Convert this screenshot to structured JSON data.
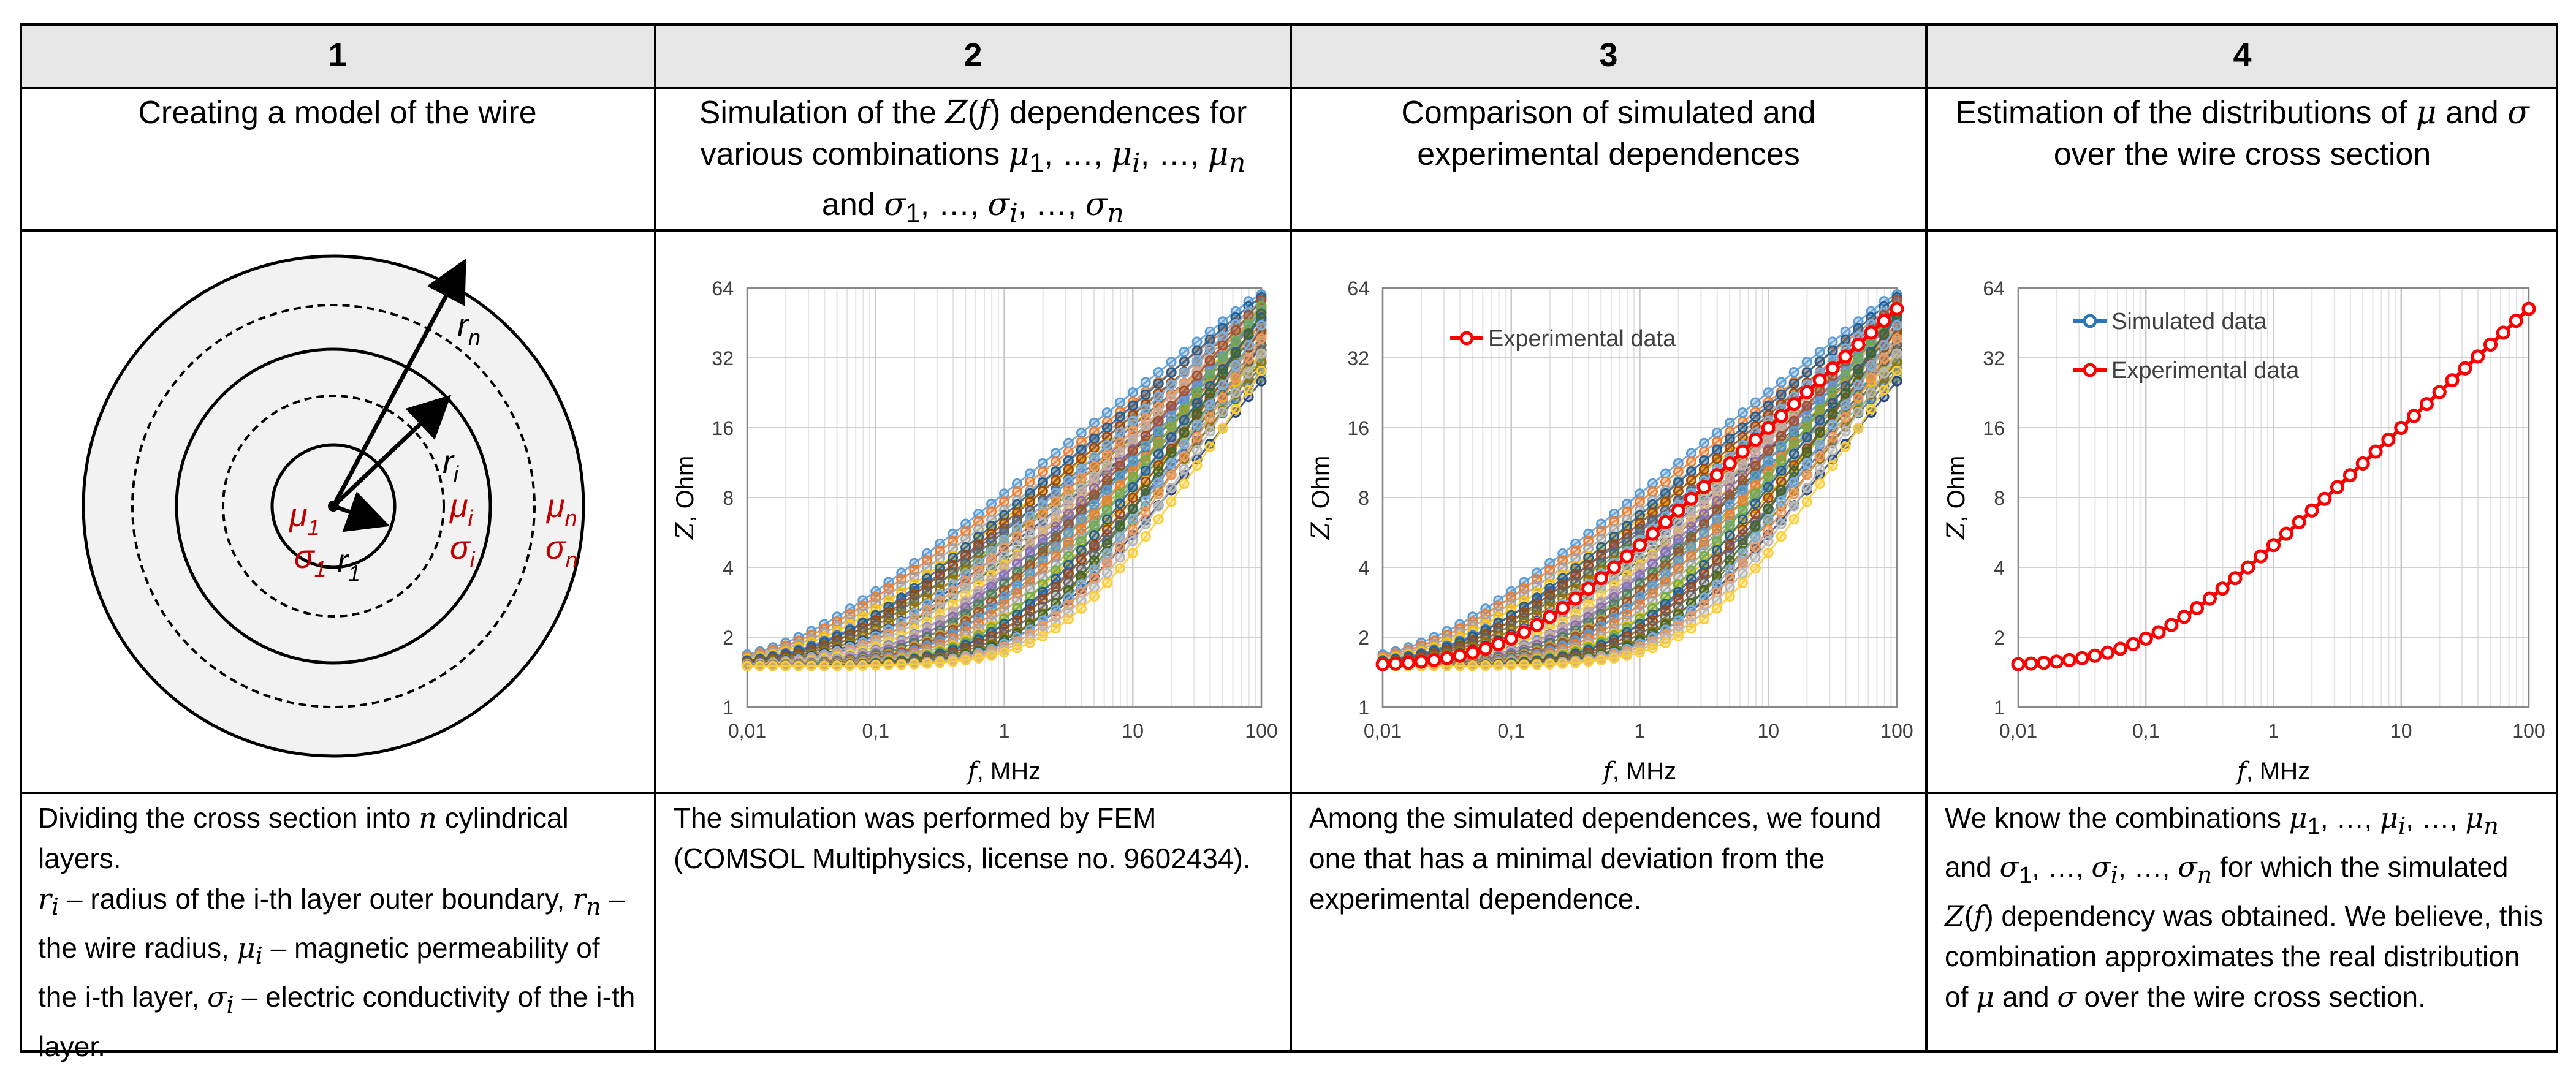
{
  "columns": [
    {
      "number": "1",
      "title_html": "Creating a model of the wire",
      "desc_html": "Dividing the cross section into <i class='serif-i'>n</i> cylindrical layers.<br><i class='serif-i'>r<sub>i</sub></i> – radius of the i-th layer outer boundary, <i class='serif-i'>r<sub>n</sub></i> – the wire radius, <i class='serif-i'>μ<sub>i</sub></i> – magnetic permeability of the i-th layer, <i class='serif-i'>σ<sub>i</sub></i> – electric conductivity of the i-th layer."
    },
    {
      "number": "2",
      "title_html": "Simulation of the <i class='serif-i'>Z</i>(<i class='serif-i'>f</i>) dependences for various combinations <i class='serif-i'>μ</i><sub>1</sub>, …, <i class='serif-i'>μ<sub>i</sub></i>, …, <i class='serif-i'>μ<sub>n</sub></i> and <i class='serif-i'>σ</i><sub>1</sub>, …, <i class='serif-i'>σ<sub>i</sub></i>, …, <i class='serif-i'>σ<sub>n</sub></i>",
      "desc_html": "The simulation was performed by FEM (COMSOL Multiphysics, license no. 9602434)."
    },
    {
      "number": "3",
      "title_html": "Comparison of simulated and experimental dependences",
      "desc_html": "Among the simulated dependences, we found one that has a minimal deviation from the experimental dependence."
    },
    {
      "number": "4",
      "title_html": "Estimation of the distributions of <i class='serif-i'>μ</i> and <i class='serif-i'>σ</i> over the wire cross section",
      "desc_html": "We know the combinations <i class='serif-i'>μ</i><sub>1</sub>, …, <i class='serif-i'>μ<sub>i</sub></i>, …, <i class='serif-i'>μ<sub>n</sub></i> and <i class='serif-i'>σ</i><sub>1</sub>, …, <i class='serif-i'>σ<sub>i</sub></i>, …, <i class='serif-i'>σ<sub>n</sub></i> for which the simulated <i class='serif-i'>Z</i>(<i class='serif-i'>f</i>) dependency was obtained. We believe, this combination approximates the real distribution of <i class='serif-i'>μ</i> and <i class='serif-i'>σ</i> over the wire cross section."
    }
  ],
  "wire_model": {
    "labels": [
      {
        "name": "mu-1",
        "main": "μ",
        "sub": "1",
        "color": "#c00000"
      },
      {
        "name": "sigma-1",
        "main": "σ",
        "sub": "1",
        "color": "#c00000"
      },
      {
        "name": "r-1",
        "main": "r",
        "sub": "1",
        "color": "#000000"
      },
      {
        "name": "r-i",
        "main": "r",
        "sub": "i",
        "color": "#000000"
      },
      {
        "name": "mu-i",
        "main": "μ",
        "sub": "i",
        "color": "#c00000"
      },
      {
        "name": "sigma-i",
        "main": "σ",
        "sub": "i",
        "color": "#c00000"
      },
      {
        "name": "r-n",
        "main": "r",
        "sub": "n",
        "color": "#000000"
      },
      {
        "name": "mu-n",
        "main": "μ",
        "sub": "n",
        "color": "#c00000"
      },
      {
        "name": "sigma-n",
        "main": "σ",
        "sub": "n",
        "color": "#c00000"
      }
    ]
  },
  "chart_data": [
    {
      "type": "line",
      "panel": "simulated-dependences",
      "xscale": "log",
      "yscale": "log2",
      "xlim": [
        0.01,
        100
      ],
      "ylim": [
        1,
        64
      ],
      "xticks": [
        "0,01",
        "0,1",
        "1",
        "10",
        "100"
      ],
      "yticks": [
        "1",
        "2",
        "4",
        "8",
        "16",
        "32",
        "64"
      ],
      "xlabel": "f, MHz",
      "ylabel": "Z, Ohm",
      "grid": true,
      "legend": [],
      "family": {
        "count": 40,
        "z_low": 1.5,
        "z_high_min": 26,
        "z_high_max": 60,
        "knee_min_mhz": 0.02,
        "knee_max_mhz": 3
      }
    },
    {
      "type": "line",
      "panel": "comparison",
      "xscale": "log",
      "yscale": "log2",
      "xlim": [
        0.01,
        100
      ],
      "ylim": [
        1,
        64
      ],
      "xticks": [
        "0,01",
        "0,1",
        "1",
        "10",
        "100"
      ],
      "yticks": [
        "1",
        "2",
        "4",
        "8",
        "16",
        "32",
        "64"
      ],
      "xlabel": "f, MHz",
      "ylabel": "Z, Ohm",
      "grid": true,
      "legend": [
        "Experimental data"
      ],
      "legend_position": "top-left",
      "family": {
        "count": 40,
        "z_low": 1.5,
        "z_high_min": 26,
        "z_high_max": 60,
        "knee_min_mhz": 0.02,
        "knee_max_mhz": 3
      },
      "experimental": {
        "color": "#ff0000",
        "z_low": 1.5,
        "z_high": 52,
        "knee_mhz": 0.1
      }
    },
    {
      "type": "line",
      "panel": "best-match",
      "xscale": "log",
      "yscale": "log2",
      "xlim": [
        0.01,
        100
      ],
      "ylim": [
        1,
        64
      ],
      "xticks": [
        "0,01",
        "0,1",
        "1",
        "10",
        "100"
      ],
      "yticks": [
        "1",
        "2",
        "4",
        "8",
        "16",
        "32",
        "64"
      ],
      "xlabel": "f, MHz",
      "ylabel": "Z, Ohm",
      "grid": true,
      "legend": [
        "Simulated data",
        "Experimental data"
      ],
      "legend_position": "top-left",
      "simulated": {
        "color": "#2e75b6",
        "z_low": 1.5,
        "z_high": 52,
        "knee_mhz": 0.1
      },
      "experimental": {
        "color": "#ff0000",
        "z_low": 1.5,
        "z_high": 52,
        "knee_mhz": 0.1
      }
    }
  ],
  "palette": [
    "#5b9bd5",
    "#ed7d31",
    "#a5a5a5",
    "#ffc000",
    "#4472c4",
    "#70ad47",
    "#255e91",
    "#9e480e",
    "#636363",
    "#997300",
    "#264478",
    "#43682b",
    "#7cafdd",
    "#f1975a",
    "#b7b7b7",
    "#ffcd33",
    "#698ed0",
    "#8cc168",
    "#c9a9a0",
    "#8e6cb0",
    "#4e7b62",
    "#c0a040",
    "#5f9ea0",
    "#a0522d"
  ]
}
